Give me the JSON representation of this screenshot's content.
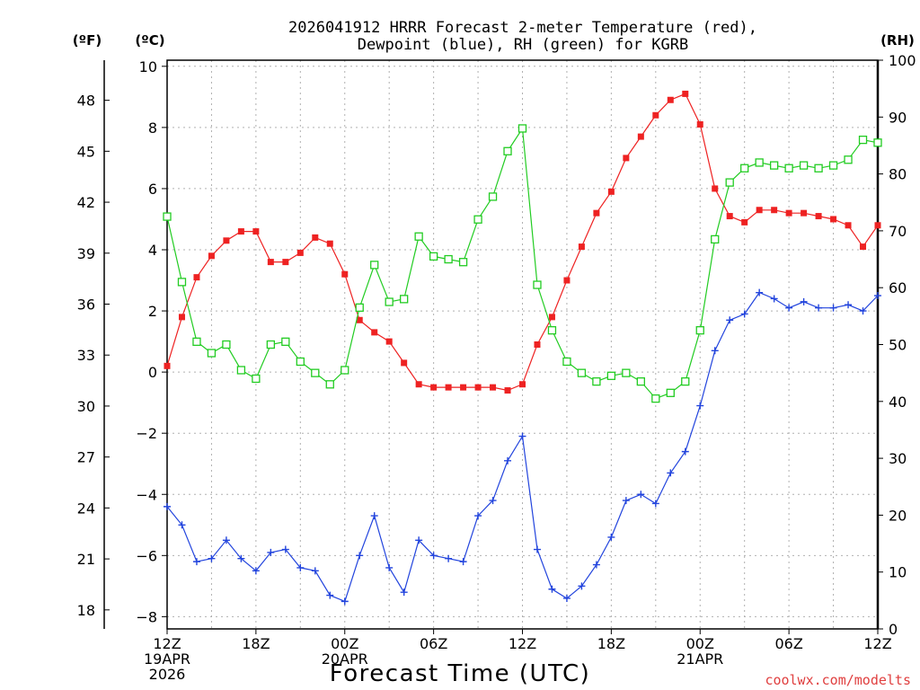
{
  "title_line1": "2026041912 HRRR Forecast 2-meter Temperature (red),",
  "title_line2": "Dewpoint (blue), RH (green) for KGRB",
  "xlabel": "Forecast Time (UTC)",
  "credit": "coolwx.com/modelts",
  "colors": {
    "temperature": "#ee2222",
    "dewpoint": "#2244dd",
    "rh": "#22cc22",
    "grid": "#b0b0b0",
    "credit": "#e04040"
  },
  "chart_data": {
    "type": "line",
    "title": "2026041912 HRRR Forecast 2-meter Temperature (red), Dewpoint (blue), RH (green) for KGRB",
    "xlabel": "Forecast Time (UTC)",
    "x_hours": [
      0,
      1,
      2,
      3,
      4,
      5,
      6,
      7,
      8,
      9,
      10,
      11,
      12,
      13,
      14,
      15,
      16,
      17,
      18,
      19,
      20,
      21,
      22,
      23,
      24,
      25,
      26,
      27,
      28,
      29,
      30,
      31,
      32,
      33,
      34,
      35,
      36,
      37,
      38,
      39,
      40,
      41,
      42,
      43,
      44,
      45,
      46,
      47,
      48
    ],
    "xlim": [
      0,
      48
    ],
    "x_ticks": [
      {
        "hour": 0,
        "lines": [
          "12Z",
          "19APR",
          "2026"
        ]
      },
      {
        "hour": 6,
        "lines": [
          "18Z"
        ]
      },
      {
        "hour": 12,
        "lines": [
          "00Z",
          "20APR"
        ]
      },
      {
        "hour": 18,
        "lines": [
          "06Z"
        ]
      },
      {
        "hour": 24,
        "lines": [
          "12Z"
        ]
      },
      {
        "hour": 30,
        "lines": [
          "18Z"
        ]
      },
      {
        "hour": 36,
        "lines": [
          "00Z",
          "21APR"
        ]
      },
      {
        "hour": 42,
        "lines": [
          "06Z"
        ]
      },
      {
        "hour": 48,
        "lines": [
          "12Z"
        ]
      }
    ],
    "y_left_c": {
      "label": "(ºC)",
      "lim": [
        -8.4,
        10.2
      ],
      "ticks": [
        "-8",
        "-6",
        "-4",
        "-2",
        "0",
        "2",
        "4",
        "6",
        "8",
        "10"
      ]
    },
    "y_left_f": {
      "label": "(ºF)",
      "ticks": [
        "18",
        "21",
        "24",
        "27",
        "30",
        "33",
        "36",
        "39",
        "42",
        "45",
        "48"
      ]
    },
    "y_right": {
      "label": "(RH)",
      "lim": [
        0,
        100
      ],
      "ticks": [
        "0",
        "10",
        "20",
        "30",
        "40",
        "50",
        "60",
        "70",
        "80",
        "90",
        "100"
      ]
    },
    "grid": true,
    "series": [
      {
        "key": "temperature",
        "axis": "c",
        "marker": "filled-square",
        "values": [
          0.2,
          1.8,
          3.1,
          3.8,
          4.3,
          4.6,
          4.6,
          3.6,
          3.6,
          3.9,
          4.4,
          4.2,
          3.2,
          1.7,
          1.3,
          1.0,
          0.3,
          -0.4,
          -0.5,
          -0.5,
          -0.5,
          -0.5,
          -0.5,
          -0.6,
          -0.4,
          0.9,
          1.8,
          3.0,
          4.1,
          5.2,
          5.9,
          7.0,
          7.7,
          8.4,
          8.9,
          9.1,
          8.1,
          6.0,
          5.1,
          4.9,
          5.3,
          5.3,
          5.2,
          5.2,
          5.1,
          5.0,
          4.8,
          4.1,
          4.8
        ]
      },
      {
        "key": "dewpoint",
        "axis": "c",
        "marker": "plus",
        "values": [
          -4.4,
          -5.0,
          -6.2,
          -6.1,
          -5.5,
          -6.1,
          -6.5,
          -5.9,
          -5.8,
          -6.4,
          -6.5,
          -7.3,
          -7.5,
          -6.0,
          -4.7,
          -6.4,
          -7.2,
          -5.5,
          -6.0,
          -6.1,
          -6.2,
          -4.7,
          -4.2,
          -2.9,
          -2.1,
          -5.8,
          -7.1,
          -7.4,
          -7.0,
          -6.3,
          -5.4,
          -4.2,
          -4.0,
          -4.3,
          -3.3,
          -2.6,
          -1.1,
          0.7,
          1.7,
          1.9,
          2.6,
          2.4,
          2.1,
          2.3,
          2.1,
          2.1,
          2.2,
          2.0,
          2.5
        ]
      },
      {
        "key": "rh",
        "axis": "rh",
        "marker": "open-square",
        "values": [
          72.5,
          61,
          50.5,
          48.5,
          50,
          45.5,
          44,
          50,
          50.5,
          47,
          45,
          43,
          45.5,
          56.5,
          64,
          57.5,
          58,
          69,
          65.5,
          65,
          64.5,
          72,
          76,
          84,
          88,
          60.5,
          52.5,
          47,
          45,
          43.5,
          44.5,
          45,
          43.5,
          40.5,
          41.5,
          43.5,
          52.5,
          68.5,
          78.5,
          81,
          82,
          81.5,
          81,
          81.5,
          81,
          81.5,
          82.5,
          86,
          85.5
        ]
      }
    ]
  }
}
